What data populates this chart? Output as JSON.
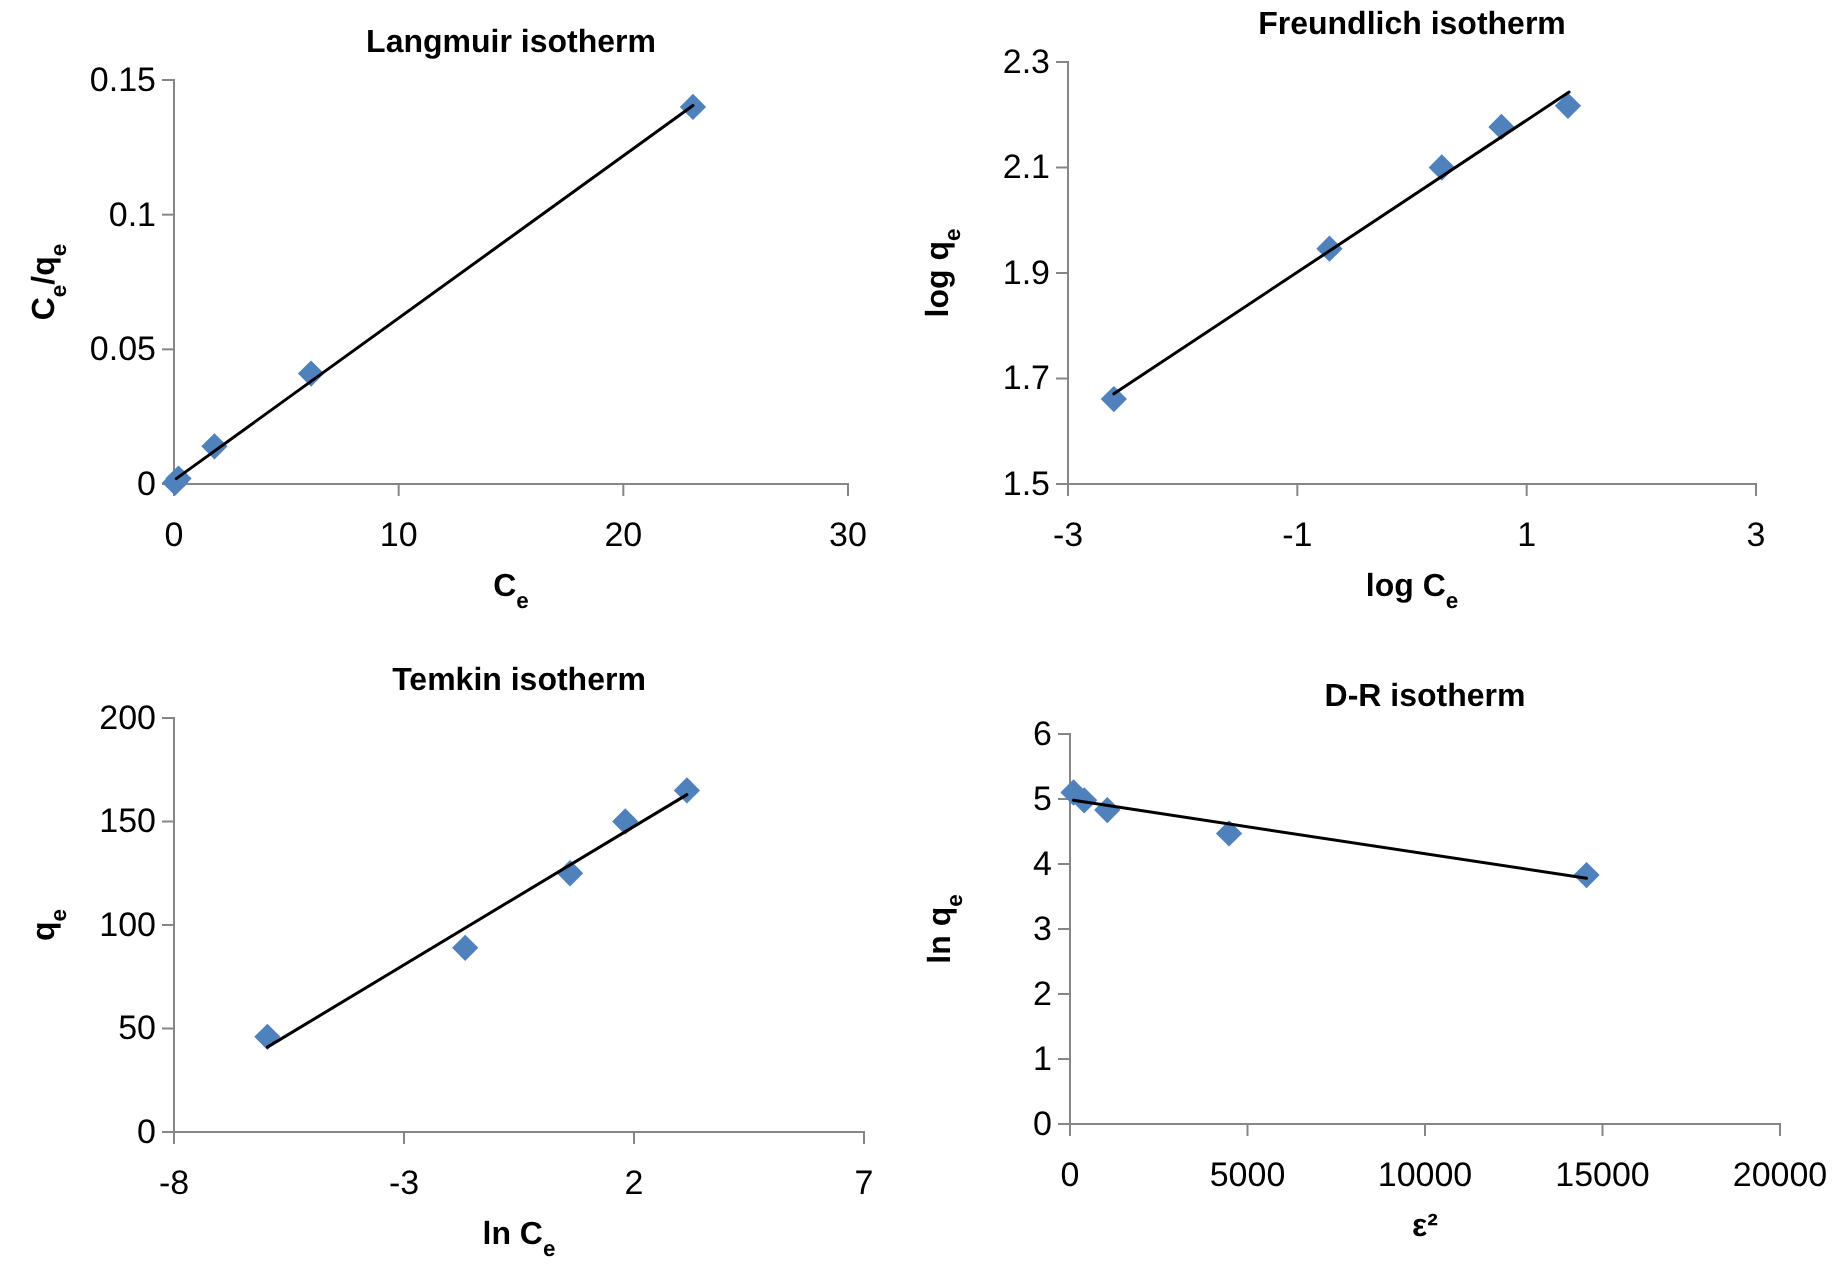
{
  "chart_data": [
    {
      "type": "scatter",
      "title": "Langmuir isotherm",
      "xlabel": "C$_{e}$",
      "ylabel": "C$_{e}$/q$_{e}$",
      "xlim": [
        0,
        30
      ],
      "ylim": [
        0,
        0.15
      ],
      "xticks": [
        0,
        10,
        20,
        30
      ],
      "yticks": [
        0,
        0.05,
        0.1,
        0.15
      ],
      "marker": "diamond",
      "grid": false,
      "series": [
        {
          "color": "#4f81bd",
          "x": [
            0.05,
            0.2,
            1.8,
            6.1,
            23.1
          ],
          "values": [
            0.0005,
            0.002,
            0.014,
            0.041,
            0.14
          ]
        },
        {
          "type": "line",
          "color": "#000000",
          "marker": "none",
          "x": [
            0.1,
            23.1
          ],
          "values": [
            0.002,
            0.1405
          ]
        }
      ]
    },
    {
      "type": "scatter",
      "title": "Freundlich isotherm",
      "xlabel": "log C$_{e}$",
      "ylabel": "log q$_{e}$",
      "xlim": [
        -3,
        3
      ],
      "ylim": [
        1.5,
        2.3
      ],
      "xticks": [
        -3,
        -1,
        1,
        3
      ],
      "yticks": [
        1.5,
        1.7,
        1.9,
        2.1,
        2.3
      ],
      "marker": "diamond",
      "grid": false,
      "series": [
        {
          "color": "#4f81bd",
          "x": [
            -2.6,
            -0.72,
            0.26,
            0.78,
            1.36
          ],
          "values": [
            1.661,
            1.946,
            2.1,
            2.177,
            2.217
          ]
        },
        {
          "type": "line",
          "color": "#000000",
          "marker": "none",
          "x": [
            -2.6,
            1.37
          ],
          "values": [
            1.671,
            2.243
          ]
        }
      ]
    },
    {
      "type": "scatter",
      "title": "Temkin isotherm",
      "xlabel": "ln C$_{e}$",
      "ylabel": "q$_{e}$",
      "xlim": [
        -8,
        7
      ],
      "ylim": [
        0,
        200
      ],
      "xticks": [
        -8,
        -3,
        2,
        7
      ],
      "yticks": [
        0,
        50,
        100,
        150,
        200
      ],
      "marker": "diamond",
      "grid": false,
      "series": [
        {
          "color": "#4f81bd",
          "x": [
            -5.97,
            -1.67,
            0.61,
            1.81,
            3.15
          ],
          "values": [
            46,
            89,
            125,
            150,
            165
          ]
        },
        {
          "type": "line",
          "color": "#000000",
          "marker": "none",
          "x": [
            -5.97,
            3.15
          ],
          "values": [
            41,
            163
          ]
        }
      ]
    },
    {
      "type": "scatter",
      "title": "D-R isotherm",
      "xlabel": "ε²",
      "ylabel": "ln q$_{e}$",
      "xlim": [
        0,
        20000
      ],
      "ylim": [
        0,
        6
      ],
      "xticks": [
        0,
        5000,
        10000,
        15000,
        20000
      ],
      "yticks": [
        0,
        1,
        2,
        3,
        4,
        5,
        6
      ],
      "marker": "diamond",
      "grid": false,
      "series": [
        {
          "color": "#4f81bd",
          "x": [
            100,
            400,
            1050,
            4480,
            14550
          ],
          "values": [
            5.1,
            4.98,
            4.83,
            4.47,
            3.83
          ]
        },
        {
          "type": "line",
          "color": "#000000",
          "marker": "none",
          "x": [
            100,
            14550
          ],
          "values": [
            4.98,
            3.78
          ]
        }
      ]
    }
  ]
}
